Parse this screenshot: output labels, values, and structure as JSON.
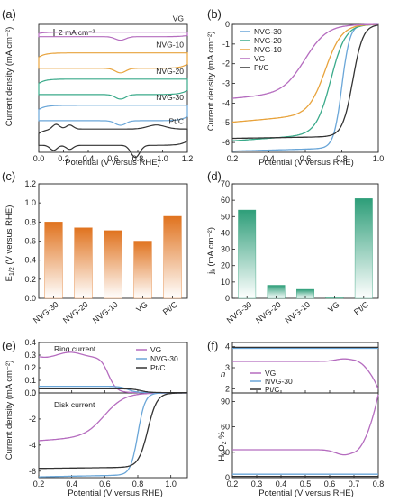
{
  "colors": {
    "NVG-30": "#6aa6d8",
    "NVG-20": "#3aaa8a",
    "NVG-10": "#e8a33c",
    "VG": "#b56cbf",
    "Pt/C": "#333333",
    "bar_orange": "#e0731f",
    "bar_green": "#2e9e79"
  },
  "chart_data": [
    {
      "id": "a",
      "panel_label": "(a)",
      "type": "line",
      "xlabel": "Potential (V versus RHE)",
      "ylabel": "Current density (mA cm⁻²)",
      "xlim": [
        0.0,
        1.2
      ],
      "x_ticks": [
        "0.0",
        "0.2",
        "0.4",
        "0.6",
        "0.8",
        "1.0",
        "1.2"
      ],
      "scale_bar_label": "2 mA cm⁻²",
      "series": [
        {
          "name": "VG",
          "offset": 10.2
        },
        {
          "name": "NVG-10",
          "offset": 7.6
        },
        {
          "name": "NVG-20",
          "offset": 5.0
        },
        {
          "name": "NVG-30",
          "offset": 2.4
        },
        {
          "name": "Pt/C",
          "offset": 0.0
        }
      ]
    },
    {
      "id": "b",
      "panel_label": "(b)",
      "type": "line",
      "xlabel": "Potential (V versus RHE)",
      "ylabel": "Current density (mA cm⁻²)",
      "xlim": [
        0.2,
        1.0
      ],
      "ylim": [
        -6.5,
        0
      ],
      "x_ticks": [
        "0.2",
        "0.4",
        "0.6",
        "0.8",
        "1.0"
      ],
      "y_ticks": [
        "0",
        "-1",
        "-2",
        "-3",
        "-4",
        "-5",
        "-6"
      ],
      "legend": [
        "NVG-30",
        "NVG-20",
        "NVG-10",
        "VG",
        "Pt/C"
      ],
      "series": [
        {
          "name": "NVG-30",
          "jlim": -6.3,
          "slope": -0.5,
          "e_half": 0.8,
          "width": 0.022
        },
        {
          "name": "NVG-20",
          "jlim": -5.6,
          "slope": -1.3,
          "e_half": 0.74,
          "width": 0.04
        },
        {
          "name": "NVG-10",
          "jlim": -4.6,
          "slope": -1.6,
          "e_half": 0.71,
          "width": 0.045
        },
        {
          "name": "VG",
          "jlim": -3.5,
          "slope": -1.5,
          "e_half": 0.6,
          "width": 0.06
        },
        {
          "name": "Pt/C",
          "jlim": -5.7,
          "slope": -0.3,
          "e_half": 0.86,
          "width": 0.028
        }
      ]
    },
    {
      "id": "c",
      "panel_label": "(c)",
      "type": "bar",
      "ylabel": "E1/2 (V versus RHE)",
      "ylabel_main": "E",
      "ylabel_sub": "1/2",
      "ylabel_rest": " (V versus RHE)",
      "ylim": [
        0.0,
        1.2
      ],
      "y_ticks": [
        "0.0",
        "0.2",
        "0.4",
        "0.6",
        "0.8",
        "1.0",
        "1.2"
      ],
      "categories": [
        "NVG-30",
        "NVG-20",
        "NVG-10",
        "VG",
        "Pt/C"
      ],
      "values": [
        0.8,
        0.74,
        0.71,
        0.6,
        0.86
      ]
    },
    {
      "id": "d",
      "panel_label": "(d)",
      "type": "bar",
      "ylabel": "jk (mA cm⁻²)",
      "ylabel_main": "j",
      "ylabel_sub": "k",
      "ylabel_rest": " (mA cm⁻²)",
      "ylim": [
        0,
        70
      ],
      "y_ticks": [
        "0",
        "10",
        "20",
        "30",
        "40",
        "50",
        "60",
        "70"
      ],
      "categories": [
        "NVG-30",
        "NVG-20",
        "NVG-10",
        "VG",
        "Pt/C"
      ],
      "values": [
        54,
        8,
        5.5,
        0.5,
        61
      ]
    },
    {
      "id": "e",
      "panel_label": "(e)",
      "type": "line",
      "xlabel": "Potential (V versus RHE)",
      "ylabel": "Current density (mA cm⁻²)",
      "xlim": [
        0.2,
        1.1
      ],
      "x_ticks": [
        "0.2",
        "0.4",
        "0.6",
        "0.8",
        "1.0"
      ],
      "ring_label": "Ring current",
      "disk_label": "Disk current",
      "ring_ylim": [
        0.0,
        0.4
      ],
      "ring_y_ticks": [
        "0.0",
        "0.1",
        "0.2",
        "0.3",
        "0.4"
      ],
      "disk_ylim": [
        -6.5,
        0
      ],
      "disk_y_ticks": [
        "0",
        "-2",
        "-4",
        "-6"
      ],
      "legend": [
        "VG",
        "NVG-30",
        "Pt/C"
      ],
      "series": [
        {
          "name": "VG",
          "ring_base": 0.3,
          "ring_drop": 0.62,
          "jlim": -3.4,
          "slope": -1.5,
          "e_half": 0.6,
          "width": 0.06
        },
        {
          "name": "NVG-30",
          "ring_base": 0.05,
          "ring_drop": 0.74,
          "jlim": -6.3,
          "slope": -0.5,
          "e_half": 0.8,
          "width": 0.022
        },
        {
          "name": "Pt/C",
          "ring_base": 0.03,
          "ring_drop": 0.82,
          "jlim": -5.7,
          "slope": -0.3,
          "e_half": 0.86,
          "width": 0.028
        }
      ]
    },
    {
      "id": "f",
      "panel_label": "(f)",
      "type": "line",
      "xlabel": "Potential (V versus RHE)",
      "xlim": [
        0.2,
        0.8
      ],
      "x_ticks": [
        "0.2",
        "0.3",
        "0.4",
        "0.5",
        "0.6",
        "0.7",
        "0.8"
      ],
      "n_label": "n",
      "n_ylim": [
        1.8,
        4.2
      ],
      "n_y_ticks": [
        "4",
        "3",
        "2"
      ],
      "h2o2_label_main": "H",
      "h2o2_label_sub1": "2",
      "h2o2_label_o": "O",
      "h2o2_label_sub2": "2",
      "h2o2_label_rest": " %",
      "h2o2_ylim": [
        0,
        100
      ],
      "h2o2_y_ticks": [
        "0",
        "30",
        "60",
        "90"
      ],
      "legend": [
        "VG",
        "NVG-30",
        "Pt/C"
      ],
      "series": [
        {
          "name": "VG",
          "n": 3.3,
          "h2o2": 33
        },
        {
          "name": "NVG-30",
          "n": 3.92,
          "h2o2": 4
        },
        {
          "name": "Pt/C",
          "n": 3.97,
          "h2o2": 1.5
        }
      ]
    }
  ]
}
